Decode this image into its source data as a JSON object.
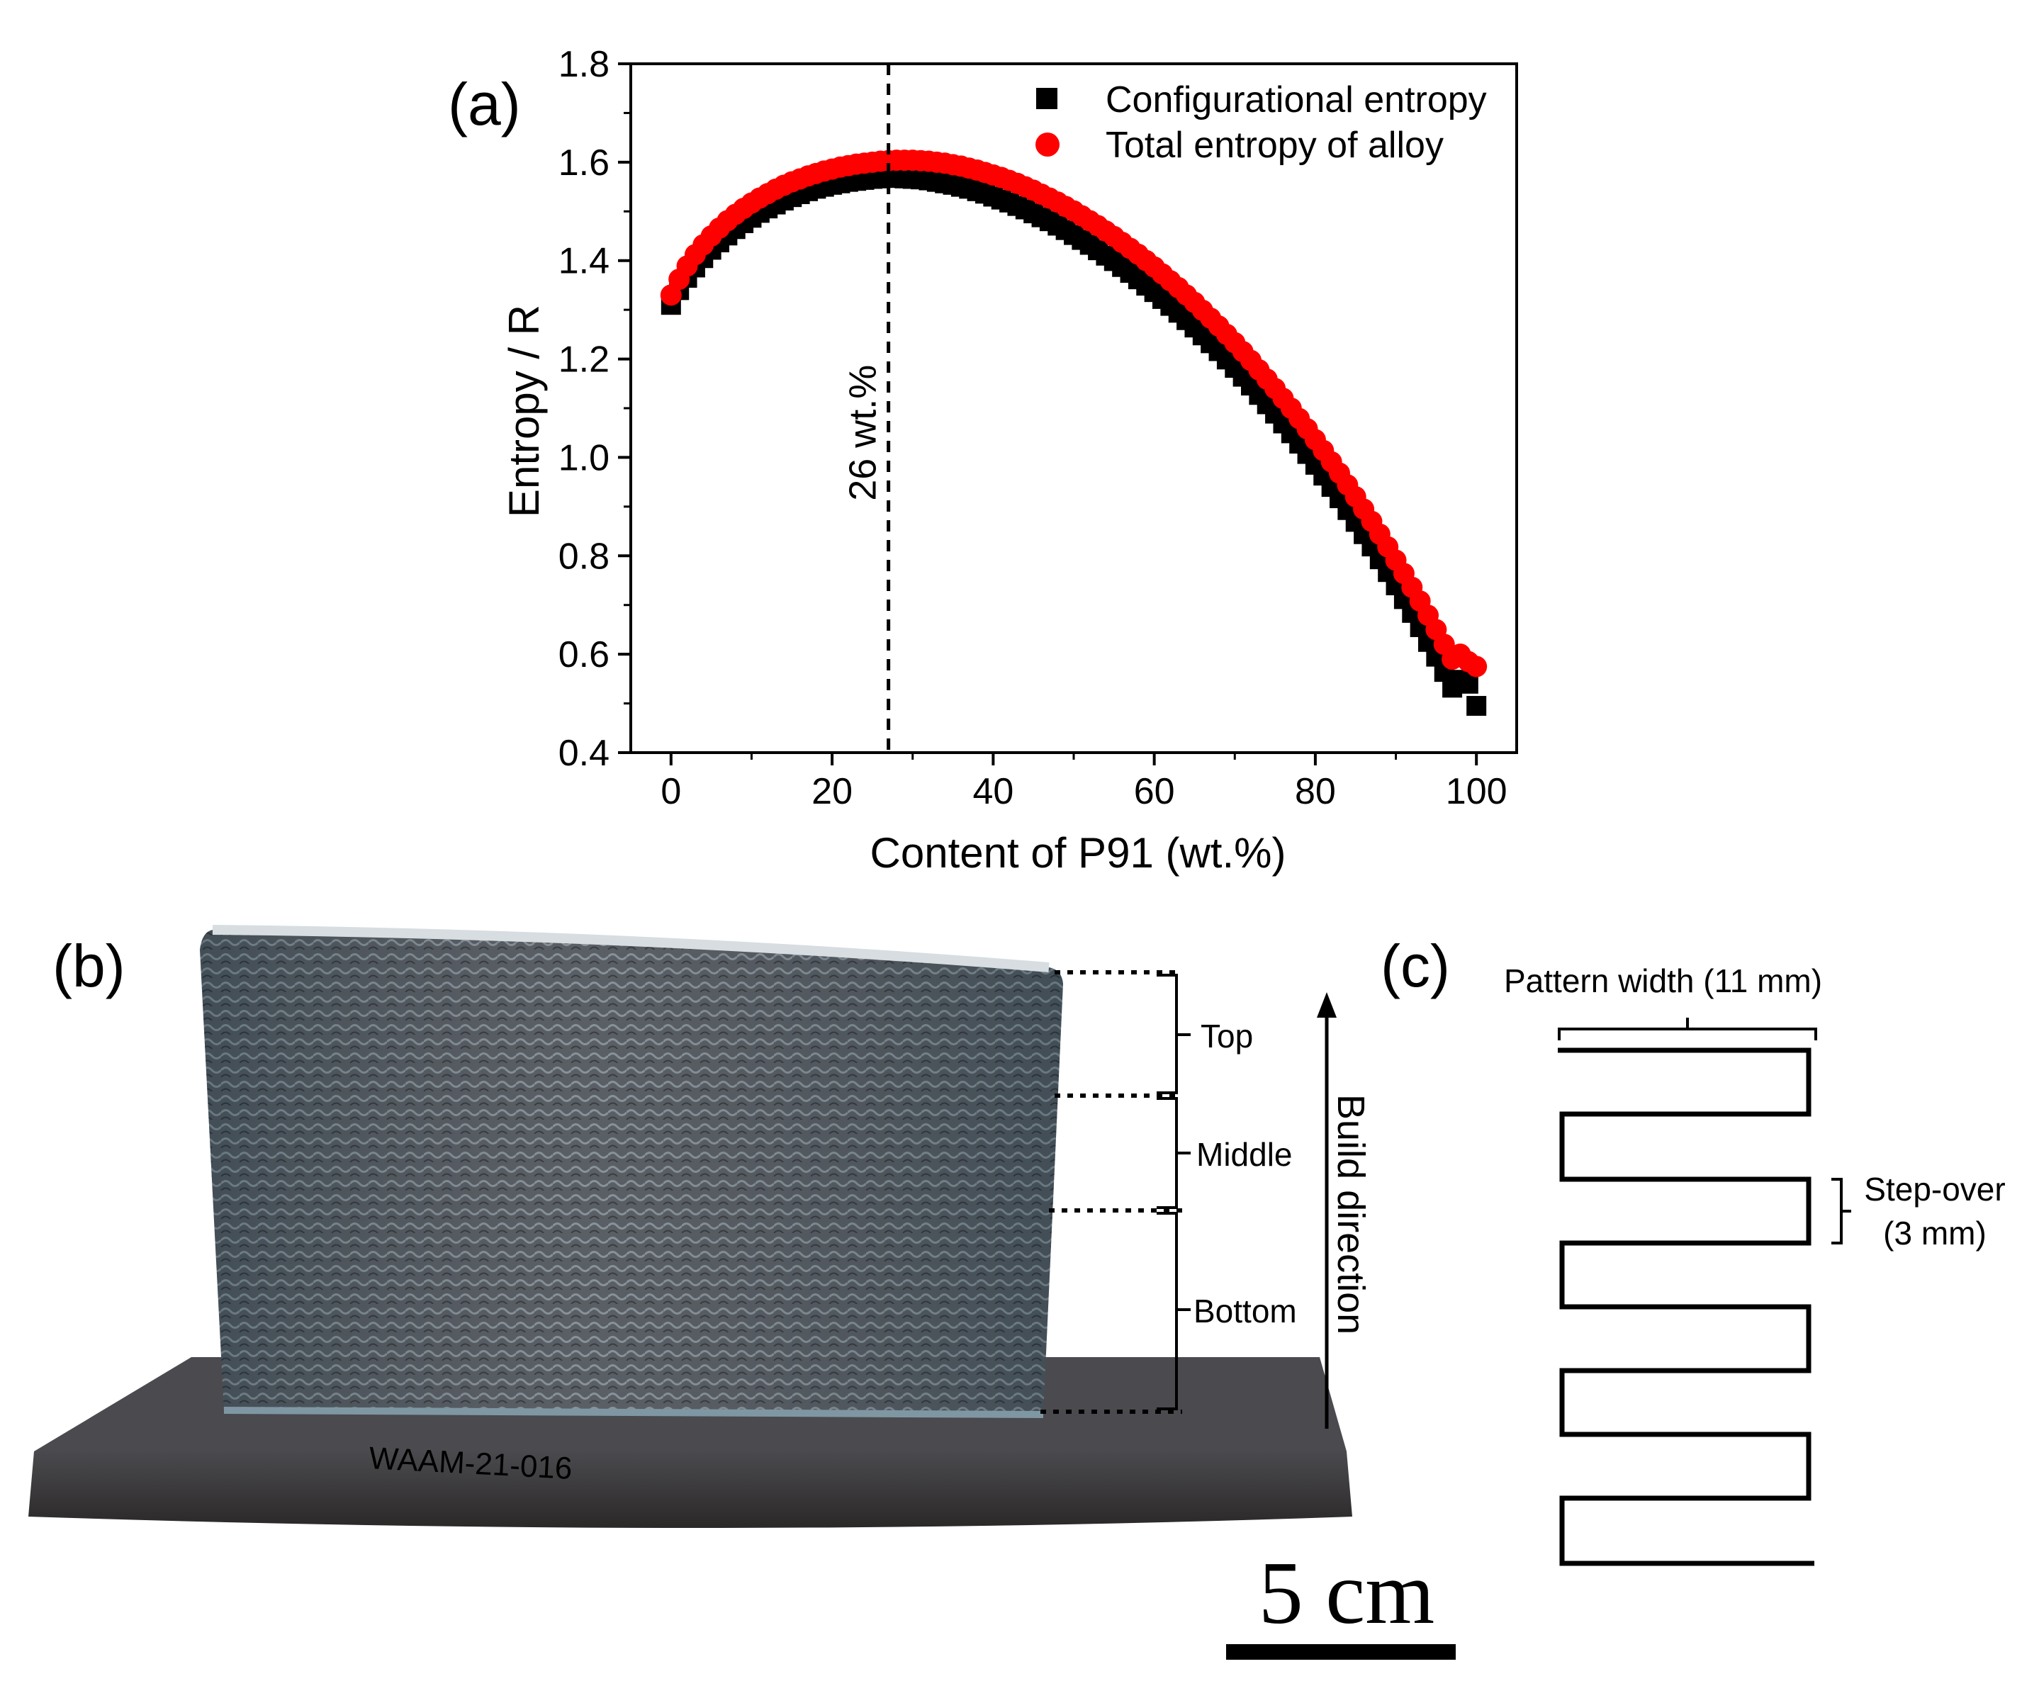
{
  "panels": {
    "a": {
      "label": "(a)"
    },
    "b": {
      "label": "(b)",
      "regions": [
        "Top",
        "Middle",
        "Bottom"
      ],
      "build_direction": "Build direction",
      "plate_marking": "WAAM-21-016",
      "scale_bar": "5 cm"
    },
    "c": {
      "label": "(c)",
      "pattern_width": "Pattern width (11 mm)",
      "step_over_line1": "Step-over",
      "step_over_line2": "(3 mm)"
    }
  },
  "chart_data": {
    "type": "scatter",
    "title": "",
    "xlabel": "Content of P91 (wt.%)",
    "ylabel": "Entropy / R",
    "xlim": [
      -5,
      105
    ],
    "ylim": [
      0.4,
      1.8
    ],
    "xticks": [
      0,
      20,
      40,
      60,
      80,
      100
    ],
    "yticks": [
      0.4,
      0.6,
      0.8,
      1.0,
      1.2,
      1.4,
      1.6,
      1.8
    ],
    "ytick_labels": [
      "0.4",
      "0.6",
      "0.8",
      "1.0",
      "1.2",
      "1.4",
      "1.6",
      "1.8"
    ],
    "grid": false,
    "legend": "top-right",
    "annotation": {
      "text": "26 wt.%",
      "x": 27
    },
    "series": [
      {
        "name": "Configurational entropy",
        "marker": "square",
        "color": "#000000",
        "x": [
          0,
          1,
          2,
          3,
          4,
          5,
          6,
          7,
          8,
          9,
          10,
          11,
          12,
          13,
          14,
          15,
          16,
          17,
          18,
          19,
          20,
          21,
          22,
          23,
          24,
          25,
          26,
          27,
          28,
          29,
          30,
          31,
          32,
          33,
          34,
          35,
          36,
          37,
          38,
          39,
          40,
          41,
          42,
          43,
          44,
          45,
          46,
          47,
          48,
          49,
          50,
          51,
          52,
          53,
          54,
          55,
          56,
          57,
          58,
          59,
          60,
          61,
          62,
          63,
          64,
          65,
          66,
          67,
          68,
          69,
          70,
          71,
          72,
          73,
          74,
          75,
          76,
          77,
          78,
          79,
          80,
          81,
          82,
          83,
          84,
          85,
          86,
          87,
          88,
          89,
          90,
          91,
          92,
          93,
          94,
          95,
          96,
          97,
          98,
          99,
          100
        ],
        "y": [
          1.31,
          1.34,
          1.365,
          1.386,
          1.405,
          1.422,
          1.437,
          1.451,
          1.464,
          1.476,
          1.487,
          1.497,
          1.506,
          1.514,
          1.522,
          1.529,
          1.535,
          1.541,
          1.546,
          1.55,
          1.554,
          1.557,
          1.56,
          1.562,
          1.564,
          1.566,
          1.567,
          1.568,
          1.568,
          1.567,
          1.566,
          1.565,
          1.563,
          1.56,
          1.557,
          1.554,
          1.55,
          1.546,
          1.541,
          1.536,
          1.53,
          1.524,
          1.518,
          1.511,
          1.504,
          1.496,
          1.488,
          1.48,
          1.471,
          1.462,
          1.452,
          1.442,
          1.432,
          1.421,
          1.41,
          1.399,
          1.387,
          1.375,
          1.362,
          1.349,
          1.336,
          1.322,
          1.308,
          1.294,
          1.279,
          1.264,
          1.248,
          1.232,
          1.216,
          1.199,
          1.182,
          1.164,
          1.146,
          1.127,
          1.108,
          1.089,
          1.069,
          1.049,
          1.028,
          1.007,
          0.985,
          0.963,
          0.94,
          0.917,
          0.893,
          0.869,
          0.844,
          0.819,
          0.793,
          0.767,
          0.74,
          0.712,
          0.684,
          0.655,
          0.625,
          0.595,
          0.564,
          0.532,
          0.548,
          0.54,
          0.495
        ]
      },
      {
        "name": "Total entropy of alloy",
        "marker": "circle",
        "color": "#ff0000",
        "x": [
          0,
          1,
          2,
          3,
          4,
          5,
          6,
          7,
          8,
          9,
          10,
          11,
          12,
          13,
          14,
          15,
          16,
          17,
          18,
          19,
          20,
          21,
          22,
          23,
          24,
          25,
          26,
          27,
          28,
          29,
          30,
          31,
          32,
          33,
          34,
          35,
          36,
          37,
          38,
          39,
          40,
          41,
          42,
          43,
          44,
          45,
          46,
          47,
          48,
          49,
          50,
          51,
          52,
          53,
          54,
          55,
          56,
          57,
          58,
          59,
          60,
          61,
          62,
          63,
          64,
          65,
          66,
          67,
          68,
          69,
          70,
          71,
          72,
          73,
          74,
          75,
          76,
          77,
          78,
          79,
          80,
          81,
          82,
          83,
          84,
          85,
          86,
          87,
          88,
          89,
          90,
          91,
          92,
          93,
          94,
          95,
          96,
          97,
          98,
          99,
          100
        ],
        "y": [
          1.33,
          1.362,
          1.389,
          1.412,
          1.432,
          1.45,
          1.466,
          1.481,
          1.494,
          1.506,
          1.517,
          1.527,
          1.536,
          1.545,
          1.553,
          1.56,
          1.566,
          1.572,
          1.577,
          1.582,
          1.586,
          1.59,
          1.593,
          1.596,
          1.598,
          1.6,
          1.602,
          1.603,
          1.604,
          1.604,
          1.604,
          1.603,
          1.602,
          1.6,
          1.598,
          1.595,
          1.592,
          1.588,
          1.584,
          1.579,
          1.574,
          1.569,
          1.563,
          1.557,
          1.55,
          1.543,
          1.535,
          1.527,
          1.519,
          1.51,
          1.501,
          1.491,
          1.481,
          1.471,
          1.46,
          1.449,
          1.437,
          1.425,
          1.413,
          1.4,
          1.387,
          1.373,
          1.359,
          1.345,
          1.33,
          1.315,
          1.299,
          1.283,
          1.267,
          1.25,
          1.233,
          1.215,
          1.197,
          1.178,
          1.159,
          1.14,
          1.12,
          1.1,
          1.079,
          1.058,
          1.036,
          1.014,
          0.991,
          0.968,
          0.944,
          0.92,
          0.895,
          0.87,
          0.844,
          0.818,
          0.791,
          0.764,
          0.736,
          0.708,
          0.679,
          0.65,
          0.62,
          0.59,
          0.6,
          0.585,
          0.575
        ]
      }
    ]
  },
  "colors": {
    "config_marker": "#000000",
    "total_marker": "#ff0000",
    "deposit": "#5b6d78",
    "plate": "#3f3c3d"
  }
}
